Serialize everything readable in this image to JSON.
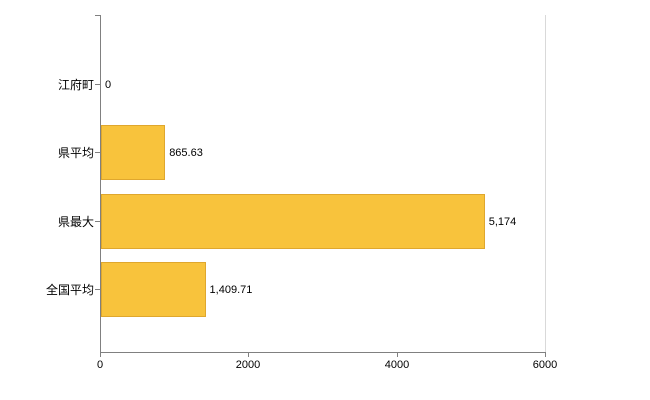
{
  "chart_data": {
    "type": "bar",
    "orientation": "horizontal",
    "title": "",
    "categories": [
      "江府町",
      "県平均",
      "県最大",
      "全国平均"
    ],
    "values": [
      0,
      865.63,
      5174,
      1409.71
    ],
    "value_labels": [
      "0",
      "865.63",
      "5,174",
      "1,409.71"
    ],
    "xlabel": "",
    "ylabel": "",
    "xlim": [
      0,
      6000
    ],
    "x_ticks": [
      0,
      2000,
      4000,
      6000
    ],
    "x_tick_labels": [
      "0",
      "2000",
      "4000",
      "6000"
    ],
    "grid": "off",
    "legend": "none",
    "colors": {
      "bar_fill": "#F8C33C",
      "bar_border": "#DFA72E",
      "axis": "#808080",
      "plot_right_border": "#d9d9d9"
    }
  }
}
